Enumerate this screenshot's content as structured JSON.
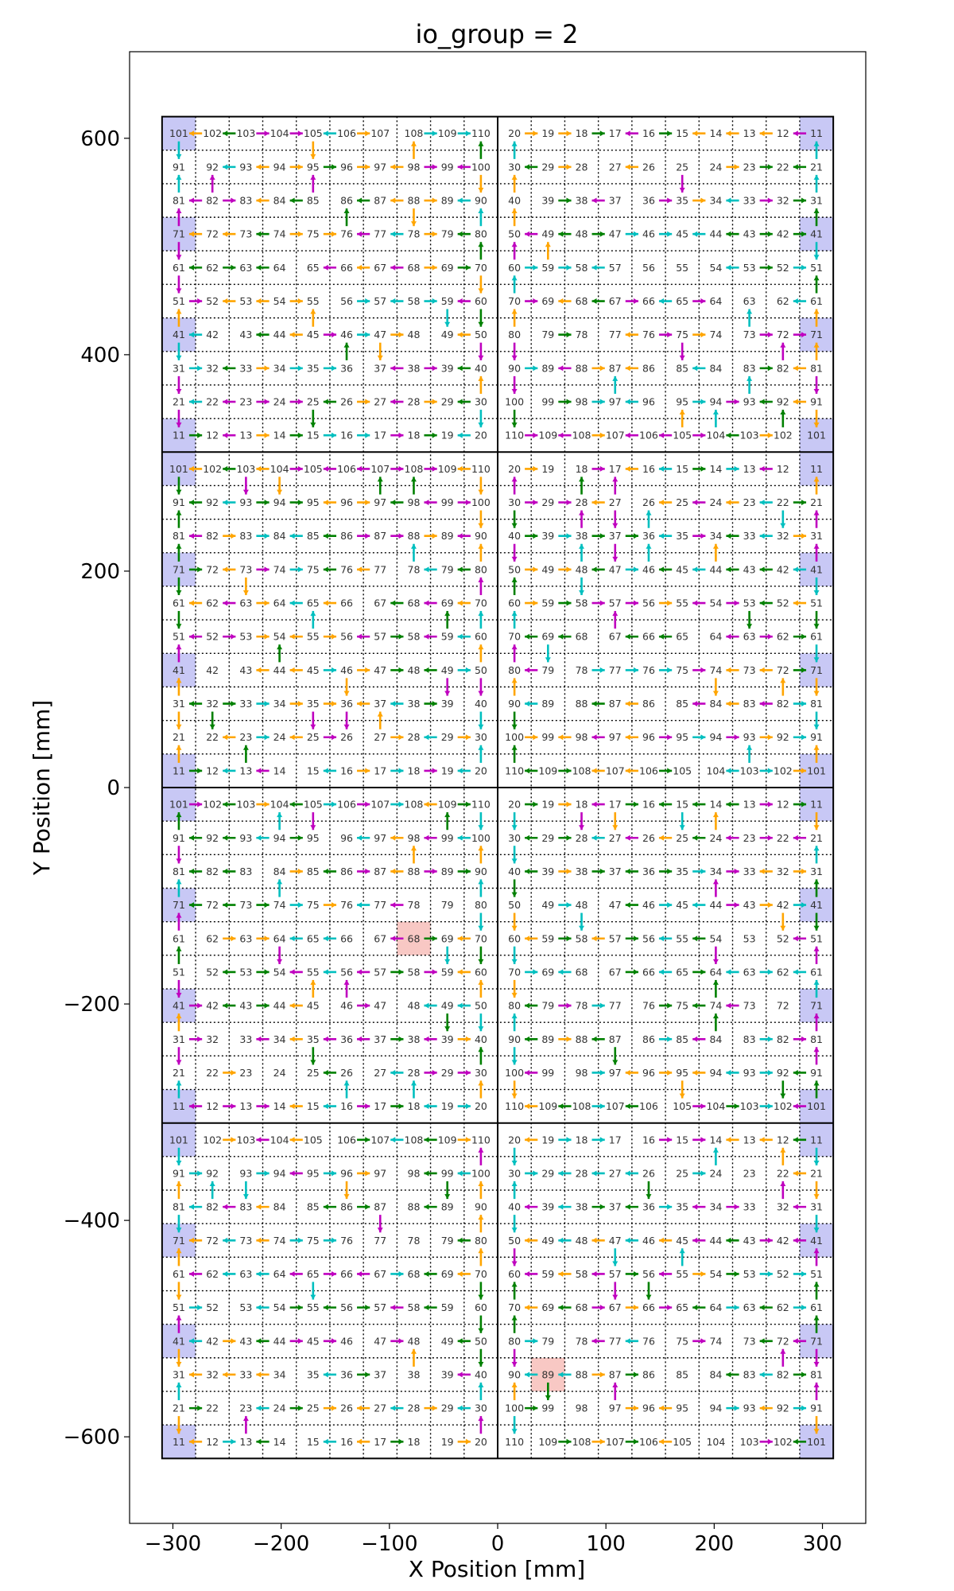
{
  "chart_data": {
    "type": "scatter",
    "title": "io_group = 2",
    "xlabel": "X Position [mm]",
    "ylabel": "Y Position [mm]",
    "xlim": [
      -340,
      340
    ],
    "ylim": [
      -680,
      680
    ],
    "xticks": [
      -300,
      -200,
      -100,
      0,
      100,
      200,
      300
    ],
    "yticks": [
      -600,
      -400,
      -200,
      0,
      200,
      400,
      600
    ],
    "xtick_labels": [
      "−300",
      "−200",
      "−100",
      "0",
      "100",
      "200",
      "300"
    ],
    "ytick_labels": [
      "−600",
      "−400",
      "−200",
      "0",
      "200",
      "400",
      "600"
    ],
    "tile_extent": {
      "x": [
        -310,
        310
      ],
      "y": [
        -620,
        620
      ]
    },
    "tile_split": {
      "x": [
        0
      ],
      "y": [
        -310,
        0,
        310
      ]
    },
    "chip_pitch_mm": 31,
    "colors": {
      "frame": "#000000",
      "grid": "#000000",
      "root_chip_fill": "#c8c8f5",
      "missing_chip_fill": "#f8c8c4",
      "link_colors": [
        "#008000",
        "#ffa500",
        "#bf00bf",
        "#00bfbf"
      ]
    },
    "left_tile_chip_grid": [
      [
        101,
        102,
        103,
        104,
        105,
        106,
        107,
        108,
        109,
        110
      ],
      [
        91,
        92,
        93,
        94,
        95,
        96,
        97,
        98,
        99,
        100
      ],
      [
        81,
        82,
        83,
        84,
        85,
        86,
        87,
        88,
        89,
        90
      ],
      [
        71,
        72,
        73,
        74,
        75,
        76,
        77,
        78,
        79,
        80
      ],
      [
        61,
        62,
        63,
        64,
        65,
        66,
        67,
        68,
        69,
        70
      ],
      [
        51,
        52,
        53,
        54,
        55,
        56,
        57,
        58,
        59,
        60
      ],
      [
        41,
        42,
        43,
        44,
        45,
        46,
        47,
        48,
        49,
        50
      ],
      [
        31,
        32,
        33,
        34,
        35,
        36,
        37,
        38,
        39,
        40
      ],
      [
        21,
        22,
        23,
        24,
        25,
        26,
        27,
        28,
        29,
        30
      ],
      [
        11,
        12,
        13,
        14,
        15,
        16,
        17,
        18,
        19,
        20
      ]
    ],
    "right_tile_chip_grid": [
      [
        20,
        19,
        18,
        17,
        16,
        15,
        14,
        13,
        12,
        11
      ],
      [
        30,
        29,
        28,
        27,
        26,
        25,
        24,
        23,
        22,
        21
      ],
      [
        40,
        39,
        38,
        37,
        36,
        35,
        34,
        33,
        32,
        31
      ],
      [
        50,
        49,
        48,
        47,
        46,
        45,
        44,
        43,
        42,
        41
      ],
      [
        60,
        59,
        58,
        57,
        56,
        55,
        54,
        53,
        52,
        51
      ],
      [
        70,
        69,
        68,
        67,
        66,
        65,
        64,
        63,
        62,
        61
      ],
      [
        80,
        79,
        78,
        77,
        76,
        75,
        74,
        73,
        72,
        71
      ],
      [
        90,
        89,
        88,
        87,
        86,
        85,
        84,
        83,
        82,
        81
      ],
      [
        100,
        99,
        98,
        97,
        96,
        95,
        94,
        93,
        92,
        91
      ],
      [
        110,
        109,
        108,
        107,
        106,
        105,
        104,
        103,
        102,
        101
      ]
    ],
    "root_chips": [
      101,
      71,
      41,
      11
    ],
    "missing_chips": [
      {
        "tile": "left",
        "block_row": 2,
        "chip": 68
      },
      {
        "tile": "right",
        "block_row": 3,
        "chip": 89
      }
    ]
  }
}
